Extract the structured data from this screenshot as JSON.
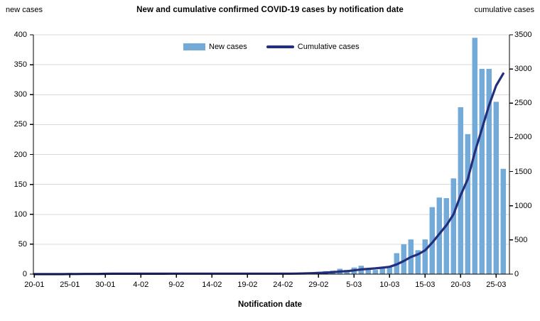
{
  "header": {
    "title": "New and cumulative confirmed COVID-19 cases by notification date",
    "left_axis_title": "new cases",
    "right_axis_title": "cumulative cases"
  },
  "legend": {
    "items": [
      {
        "label": "New cases",
        "type": "bar",
        "color": "#74AAD8"
      },
      {
        "label": "Cumulative cases",
        "type": "line",
        "color": "#232E7D"
      }
    ]
  },
  "x_axis": {
    "title": "Notification date",
    "tick_labels": [
      "20-01",
      "25-01",
      "30-01",
      "4-02",
      "9-02",
      "14-02",
      "19-02",
      "24-02",
      "29-02",
      "5-03",
      "10-03",
      "15-03",
      "20-03",
      "25-03"
    ],
    "tick_indices": [
      0,
      5,
      10,
      15,
      20,
      25,
      30,
      35,
      40,
      45,
      50,
      55,
      60,
      65
    ]
  },
  "colors": {
    "bar": "#74AAD8",
    "line": "#232E7D",
    "gridline": "#D9D9D9",
    "axis": "#000000",
    "background": "#FFFFFF"
  },
  "chart_data": {
    "type": "bar+line combo",
    "title": "New and cumulative confirmed COVID-19 cases by notification date",
    "xlabel": "Notification date",
    "left_axis": {
      "label": "new cases",
      "min": 0,
      "max": 400,
      "step": 50
    },
    "right_axis": {
      "label": "cumulative cases",
      "min": 0,
      "max": 3500,
      "step": 500
    },
    "grid": true,
    "legend_position": "top-center",
    "categories": [
      "20-01",
      "21-01",
      "22-01",
      "23-01",
      "24-01",
      "25-01",
      "26-01",
      "27-01",
      "28-01",
      "29-01",
      "30-01",
      "31-01",
      "1-02",
      "2-02",
      "3-02",
      "4-02",
      "5-02",
      "6-02",
      "7-02",
      "8-02",
      "9-02",
      "10-02",
      "11-02",
      "12-02",
      "13-02",
      "14-02",
      "15-02",
      "16-02",
      "17-02",
      "18-02",
      "19-02",
      "20-02",
      "21-02",
      "22-02",
      "23-02",
      "24-02",
      "25-02",
      "26-02",
      "27-02",
      "28-02",
      "29-02",
      "1-03",
      "2-03",
      "3-03",
      "4-03",
      "5-03",
      "6-03",
      "7-03",
      "8-03",
      "9-03",
      "10-03",
      "11-03",
      "12-03",
      "13-03",
      "14-03",
      "15-03",
      "16-03",
      "17-03",
      "18-03",
      "19-03",
      "20-03",
      "21-03",
      "22-03",
      "23-03",
      "24-03",
      "25-03",
      "26-03"
    ],
    "series": [
      {
        "name": "New cases",
        "type": "bar",
        "axis": "left",
        "color": "#74AAD8",
        "values": [
          0,
          0,
          0,
          0,
          0,
          2,
          0,
          1,
          0,
          0,
          2,
          1,
          0,
          0,
          0,
          0,
          0,
          0,
          0,
          1,
          0,
          0,
          0,
          0,
          0,
          0,
          0,
          0,
          0,
          0,
          0,
          0,
          0,
          0,
          0,
          0,
          0,
          1,
          2,
          3,
          4,
          5,
          6,
          9,
          7,
          11,
          14,
          8,
          7,
          10,
          13,
          35,
          50,
          58,
          40,
          58,
          112,
          128,
          127,
          160,
          279,
          234,
          395,
          343,
          343,
          288,
          176
        ]
      },
      {
        "name": "Cumulative cases",
        "type": "line",
        "axis": "right",
        "color": "#232E7D",
        "note": "running sum of new cases",
        "values": [
          0,
          0,
          0,
          0,
          0,
          2,
          2,
          3,
          3,
          3,
          5,
          6,
          6,
          6,
          6,
          6,
          6,
          6,
          6,
          7,
          7,
          7,
          7,
          7,
          7,
          7,
          7,
          7,
          7,
          7,
          7,
          7,
          7,
          7,
          7,
          7,
          7,
          8,
          10,
          13,
          17,
          22,
          28,
          37,
          44,
          55,
          69,
          77,
          84,
          94,
          107,
          142,
          192,
          250,
          290,
          348,
          460,
          588,
          715,
          875,
          1154,
          1388,
          1783,
          2126,
          2469,
          2757,
          2933
        ]
      }
    ]
  }
}
